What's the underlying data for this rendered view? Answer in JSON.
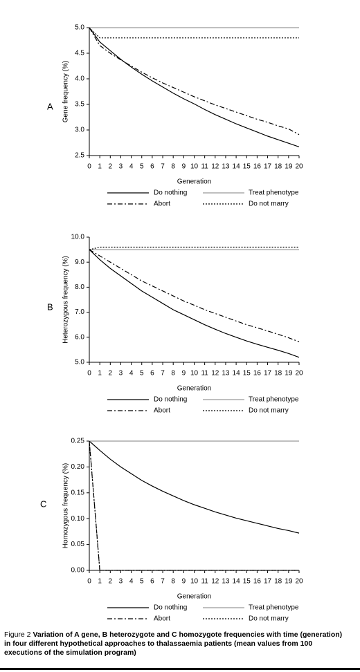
{
  "chart_data": [
    {
      "type": "line",
      "panel_label": "A",
      "x_label": "Generation",
      "y_label": "Gene frequency (%)",
      "x": [
        0,
        1,
        2,
        3,
        4,
        5,
        6,
        7,
        8,
        9,
        10,
        11,
        12,
        13,
        14,
        15,
        16,
        17,
        18,
        19,
        20
      ],
      "xlim": [
        0,
        20
      ],
      "xticks": [
        0,
        1,
        2,
        3,
        4,
        5,
        6,
        7,
        8,
        9,
        10,
        11,
        12,
        13,
        14,
        15,
        16,
        17,
        18,
        19,
        20
      ],
      "ylim": [
        2.5,
        5.0
      ],
      "yticks": [
        2.5,
        {
          "value": 3,
          "label": "3.0"
        },
        3.5,
        {
          "value": 4,
          "label": "4.0"
        },
        4.5,
        {
          "value": 5,
          "label": "5.0"
        }
      ],
      "series": [
        {
          "name": "Do nothing",
          "color": "#000000",
          "dash": "solid",
          "values": [
            5.0,
            4.72,
            4.55,
            4.38,
            4.23,
            4.09,
            3.96,
            3.84,
            3.72,
            3.61,
            3.51,
            3.4,
            3.3,
            3.21,
            3.12,
            3.04,
            2.96,
            2.88,
            2.81,
            2.74,
            2.67
          ]
        },
        {
          "name": "Treat phenotype",
          "color": "#999999",
          "dash": "solid",
          "values": [
            5.0,
            5.0,
            5.0,
            5.0,
            5.0,
            5.0,
            5.0,
            5.0,
            5.0,
            5.0,
            5.0,
            5.0,
            5.0,
            5.0,
            5.0,
            5.0,
            5.0,
            5.0,
            5.0,
            5.0,
            5.0
          ]
        },
        {
          "name": "Abort",
          "color": "#000000",
          "dash": "dashdot",
          "values": [
            5.0,
            4.65,
            4.5,
            4.37,
            4.25,
            4.13,
            4.02,
            3.92,
            3.83,
            3.74,
            3.65,
            3.57,
            3.49,
            3.42,
            3.35,
            3.28,
            3.21,
            3.15,
            3.08,
            3.02,
            2.91
          ]
        },
        {
          "name": "Do not marry",
          "color": "#000000",
          "dash": "dotted",
          "values": [
            5.0,
            4.8,
            4.8,
            4.8,
            4.8,
            4.8,
            4.8,
            4.8,
            4.8,
            4.8,
            4.8,
            4.8,
            4.8,
            4.8,
            4.8,
            4.8,
            4.8,
            4.8,
            4.8,
            4.8,
            4.8
          ]
        }
      ]
    },
    {
      "type": "line",
      "panel_label": "B",
      "x_label": "Generation",
      "y_label": "Heterozygous frequency (%)",
      "x": [
        0,
        1,
        2,
        3,
        4,
        5,
        6,
        7,
        8,
        9,
        10,
        11,
        12,
        13,
        14,
        15,
        16,
        17,
        18,
        19,
        20
      ],
      "xlim": [
        0,
        20
      ],
      "xticks": [
        0,
        1,
        2,
        3,
        4,
        5,
        6,
        7,
        8,
        9,
        10,
        11,
        12,
        13,
        14,
        15,
        16,
        17,
        18,
        19,
        20
      ],
      "ylim": [
        5.0,
        10.0
      ],
      "yticks": [
        {
          "value": 5,
          "label": "5.0"
        },
        {
          "value": 6,
          "label": "6.0"
        },
        {
          "value": 7,
          "label": "7.0"
        },
        {
          "value": 8,
          "label": "8.0"
        },
        {
          "value": 9,
          "label": "9.0"
        },
        {
          "value": 10,
          "label": "10.0"
        }
      ],
      "series": [
        {
          "name": "Do nothing",
          "color": "#000000",
          "dash": "solid",
          "values": [
            9.5,
            9.1,
            8.75,
            8.45,
            8.15,
            7.85,
            7.6,
            7.35,
            7.1,
            6.9,
            6.7,
            6.5,
            6.32,
            6.15,
            6.0,
            5.85,
            5.72,
            5.6,
            5.48,
            5.35,
            5.2
          ]
        },
        {
          "name": "Treat phenotype",
          "color": "#999999",
          "dash": "solid",
          "values": [
            9.5,
            9.5,
            9.5,
            9.5,
            9.5,
            9.5,
            9.5,
            9.5,
            9.5,
            9.5,
            9.5,
            9.5,
            9.5,
            9.5,
            9.5,
            9.5,
            9.5,
            9.5,
            9.5,
            9.5,
            9.5
          ]
        },
        {
          "name": "Abort",
          "color": "#000000",
          "dash": "dashdot",
          "values": [
            9.5,
            9.25,
            9.0,
            8.75,
            8.5,
            8.25,
            8.05,
            7.85,
            7.65,
            7.45,
            7.28,
            7.1,
            6.95,
            6.8,
            6.65,
            6.5,
            6.38,
            6.25,
            6.12,
            5.98,
            5.82
          ]
        },
        {
          "name": "Do not marry",
          "color": "#000000",
          "dash": "dotted",
          "values": [
            9.5,
            9.6,
            9.6,
            9.6,
            9.6,
            9.6,
            9.6,
            9.6,
            9.6,
            9.6,
            9.6,
            9.6,
            9.6,
            9.6,
            9.6,
            9.6,
            9.6,
            9.6,
            9.6,
            9.6,
            9.6
          ]
        }
      ]
    },
    {
      "type": "line",
      "panel_label": "C",
      "x_label": "Generation",
      "y_label": "Homozygous frequency (%)",
      "x": [
        0,
        1,
        2,
        3,
        4,
        5,
        6,
        7,
        8,
        9,
        10,
        11,
        12,
        13,
        14,
        15,
        16,
        17,
        18,
        19,
        20
      ],
      "xlim": [
        0,
        20
      ],
      "xticks": [
        0,
        1,
        2,
        3,
        4,
        5,
        6,
        7,
        8,
        9,
        10,
        11,
        12,
        13,
        14,
        15,
        16,
        17,
        18,
        19,
        20
      ],
      "ylim": [
        0,
        0.25
      ],
      "yticks": [
        {
          "value": 0,
          "label": "0.00"
        },
        0.05,
        {
          "value": 0.1,
          "label": "0.10"
        },
        0.15,
        {
          "value": 0.2,
          "label": "0.20"
        },
        0.25
      ],
      "series": [
        {
          "name": "Do nothing",
          "color": "#000000",
          "dash": "solid",
          "values": [
            0.25,
            0.232,
            0.215,
            0.2,
            0.187,
            0.174,
            0.163,
            0.153,
            0.144,
            0.135,
            0.127,
            0.12,
            0.113,
            0.107,
            0.101,
            0.096,
            0.091,
            0.086,
            0.081,
            0.077,
            0.072
          ]
        },
        {
          "name": "Treat phenotype",
          "color": "#999999",
          "dash": "solid",
          "values": [
            0.25,
            0.25,
            0.25,
            0.25,
            0.25,
            0.25,
            0.25,
            0.25,
            0.25,
            0.25,
            0.25,
            0.25,
            0.25,
            0.25,
            0.25,
            0.25,
            0.25,
            0.25,
            0.25,
            0.25,
            0.25
          ]
        },
        {
          "name": "Abort",
          "color": "#000000",
          "dash": "dashdot",
          "values": [
            0.25,
            0,
            0,
            0,
            0,
            0,
            0,
            0,
            0,
            0,
            0,
            0,
            0,
            0,
            0,
            0,
            0,
            0,
            0,
            0,
            0
          ]
        },
        {
          "name": "Do not marry",
          "color": "#000000",
          "dash": "dotted",
          "values": [
            0.25,
            0,
            0,
            0,
            0,
            0,
            0,
            0,
            0,
            0,
            0,
            0,
            0,
            0,
            0,
            0,
            0,
            0,
            0,
            0,
            0
          ]
        }
      ]
    }
  ],
  "caption": {
    "label": "Figure 2",
    "text": "Variation of A gene, B heterozygote and C homozygote frequencies with time (generation) in four different hypothetical approaches to thalassaemia patients (mean values from 100 executions of the simulation program)"
  }
}
